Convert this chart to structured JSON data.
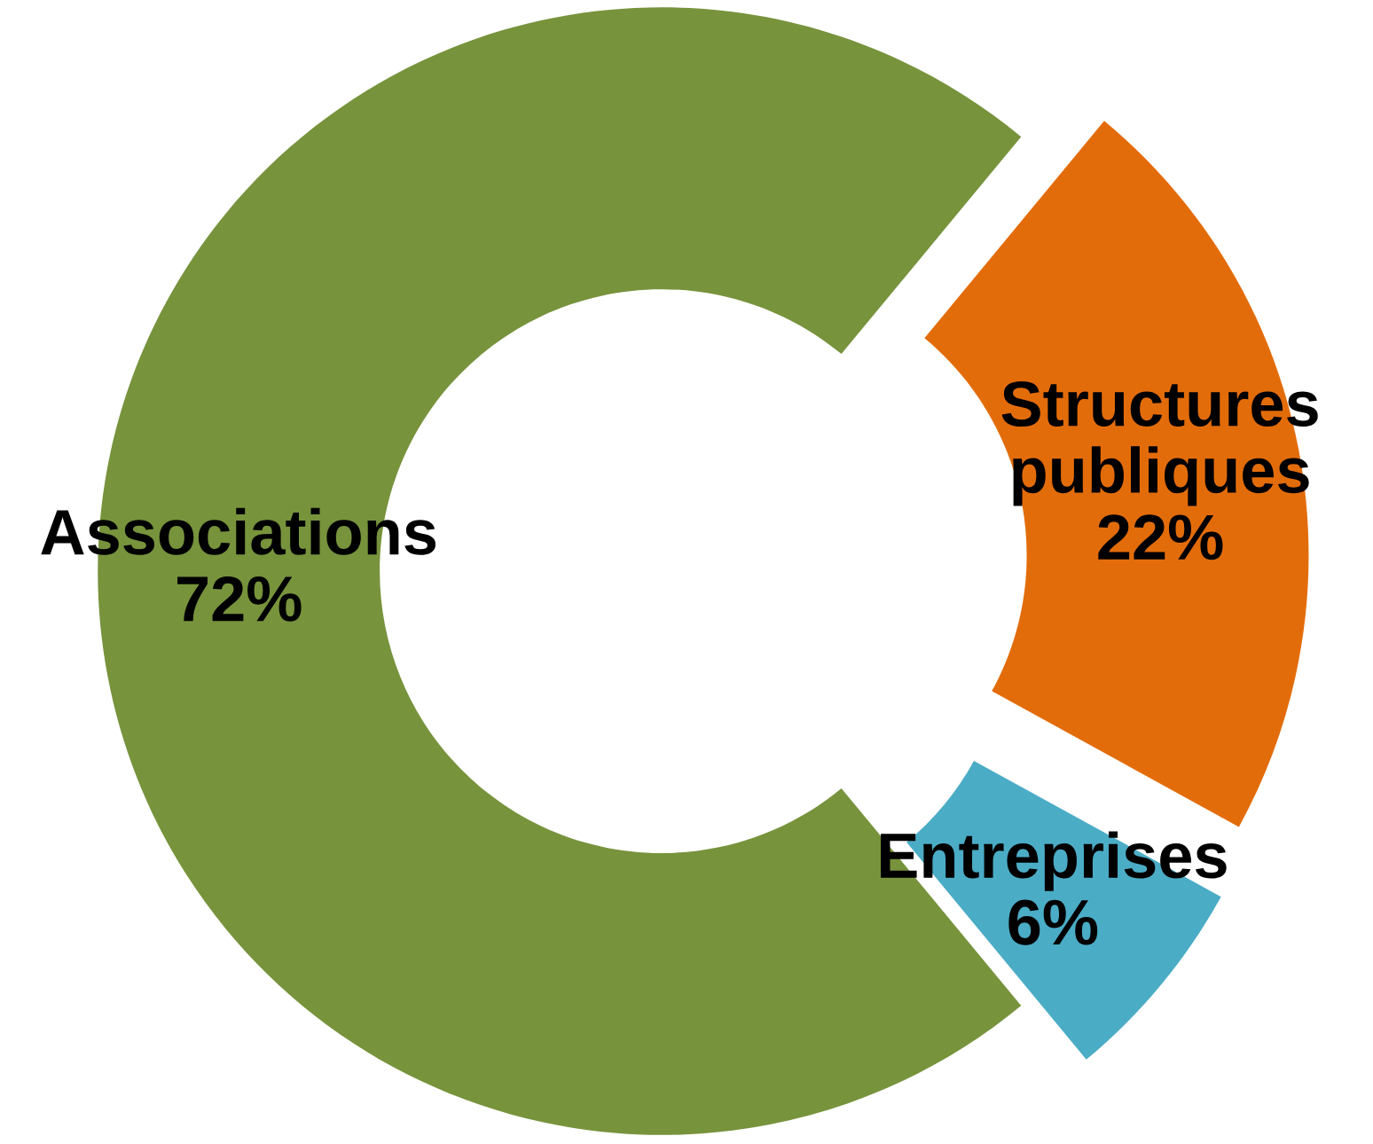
{
  "chart_data": {
    "type": "donut",
    "categories": [
      "Structures publiques",
      "Entreprises",
      "Associations"
    ],
    "values": [
      22,
      6,
      72
    ],
    "colors": [
      "#e36c0a",
      "#4bacc6",
      "#77933c"
    ],
    "value_labels": [
      "22%",
      "6%",
      "72%"
    ]
  }
}
